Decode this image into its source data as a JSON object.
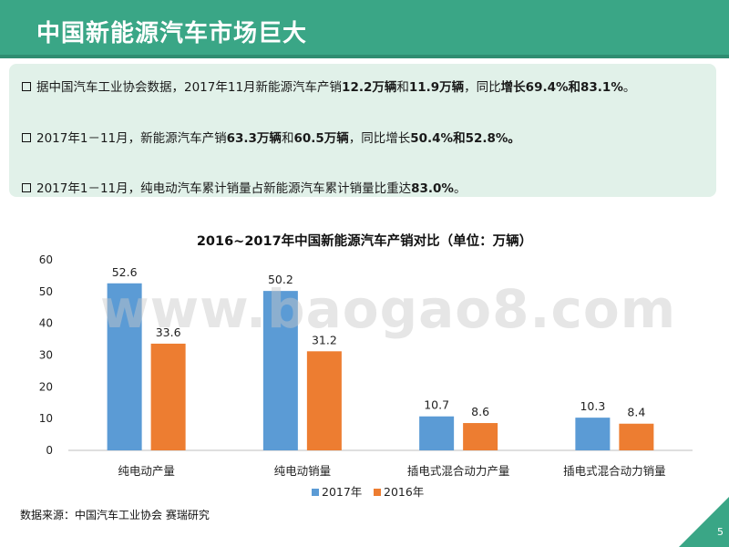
{
  "header": {
    "title": "中国新能源汽车市场巨大"
  },
  "bullets": [
    {
      "parts": [
        {
          "text": "据中国汽车工业协会数据，2017年11月新能源汽车产销",
          "bold": false
        },
        {
          "text": "12.2万辆",
          "bold": true
        },
        {
          "text": "和",
          "bold": false
        },
        {
          "text": "11.9万辆",
          "bold": true
        },
        {
          "text": "，同比",
          "bold": false
        },
        {
          "text": "增长69.4%和83.1%",
          "bold": true
        },
        {
          "text": "。",
          "bold": false
        }
      ]
    },
    {
      "parts": [
        {
          "text": "2017年1－11月，新能源汽车产销",
          "bold": false
        },
        {
          "text": "63.3万辆",
          "bold": true
        },
        {
          "text": "和",
          "bold": false
        },
        {
          "text": "60.5万辆",
          "bold": true
        },
        {
          "text": "，同比增长",
          "bold": false
        },
        {
          "text": "50.4%和52.8%。",
          "bold": true
        }
      ]
    },
    {
      "parts": [
        {
          "text": "2017年1－11月，纯电动汽车累计销量占新能源汽车累计销量比重达",
          "bold": false
        },
        {
          "text": "83.0%",
          "bold": true
        },
        {
          "text": "。",
          "bold": false
        }
      ]
    }
  ],
  "watermark": "www.baogao8.com",
  "source": "数据来源：中国汽车工业协会 赛瑞研究",
  "page_number": "5",
  "colors": {
    "header": "#3aa686",
    "box": "#e1f1e9",
    "series_2017": "#5b9bd5",
    "series_2016": "#ed7d31"
  },
  "chart_data": {
    "type": "bar",
    "title": "2016~2017年中国新能源汽车产销对比（单位：万辆）",
    "categories": [
      "纯电动产量",
      "纯电动销量",
      "插电式混合动力产量",
      "插电式混合动力销量"
    ],
    "series": [
      {
        "name": "2017年",
        "values": [
          52.6,
          50.2,
          10.7,
          10.3
        ],
        "color": "#5b9bd5"
      },
      {
        "name": "2016年",
        "values": [
          33.6,
          31.2,
          8.6,
          8.4
        ],
        "color": "#ed7d31"
      }
    ],
    "ylim": [
      0,
      60
    ],
    "yticks": [
      0,
      10,
      20,
      30,
      40,
      50,
      60
    ],
    "grid": false,
    "legend_position": "bottom"
  }
}
